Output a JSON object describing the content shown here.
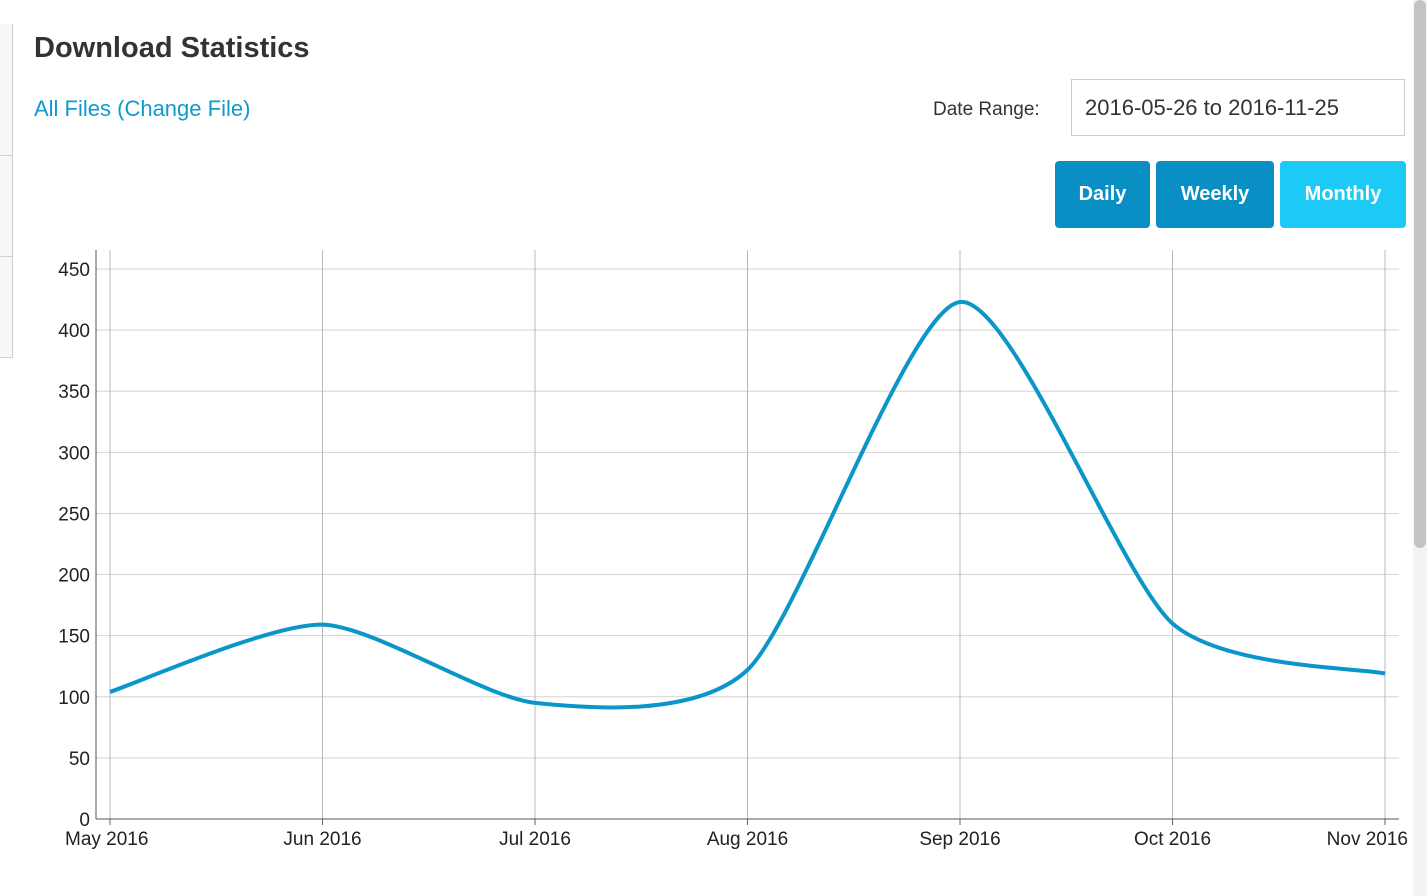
{
  "header": {
    "title": "Download Statistics",
    "file_link": "All Files (Change File)",
    "date_range_label": "Date Range:",
    "date_range_value": "2016-05-26 to 2016-11-25"
  },
  "period_buttons": {
    "daily": "Daily",
    "weekly": "Weekly",
    "monthly": "Monthly",
    "active": "Monthly"
  },
  "colors": {
    "accent": "#0c9bcf",
    "button": "#0a8fc4",
    "button_active": "#1ccaf5",
    "line": "#0a96c8"
  },
  "chart_data": {
    "type": "line",
    "title": "",
    "xlabel": "",
    "ylabel": "",
    "categories": [
      "May 2016",
      "Jun 2016",
      "Jul 2016",
      "Aug 2016",
      "Sep 2016",
      "Oct 2016",
      "Nov 2016"
    ],
    "series": [
      {
        "values": [
          104,
          159,
          95,
          122,
          423,
          160,
          119
        ]
      }
    ],
    "ylim": [
      0,
      450
    ],
    "yticks": [
      0,
      50,
      100,
      150,
      200,
      250,
      300,
      350,
      400,
      450
    ],
    "grid": true,
    "legend": "none"
  }
}
